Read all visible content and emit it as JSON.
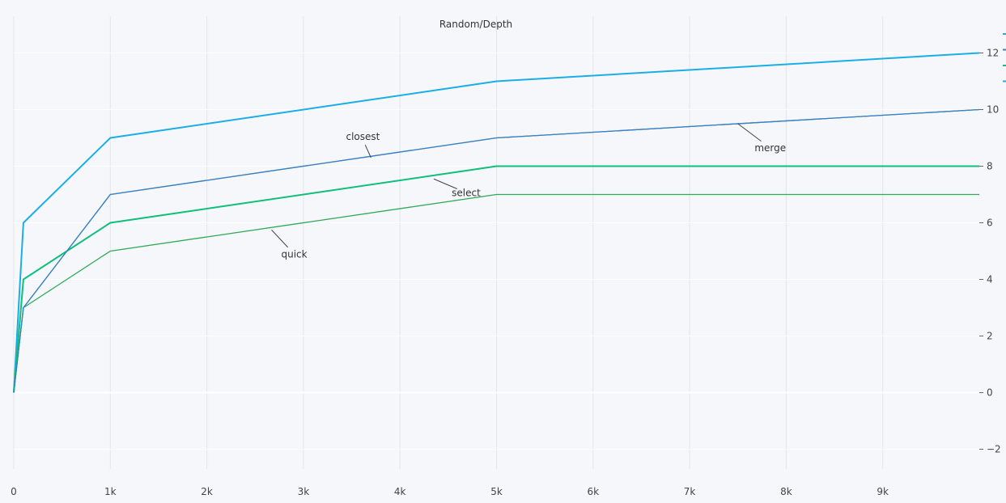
{
  "chart_data": {
    "type": "line",
    "title": "Random/Depth",
    "xlabel": "",
    "ylabel": "",
    "xlim": [
      0,
      10000
    ],
    "ylim": [
      -2.7,
      13.3
    ],
    "grid": true,
    "y_axis_side": "right",
    "x_ticks": [
      0,
      1000,
      2000,
      3000,
      4000,
      5000,
      6000,
      7000,
      8000,
      9000
    ],
    "x_tick_labels": [
      "0",
      "1k",
      "2k",
      "3k",
      "4k",
      "5k",
      "6k",
      "7k",
      "8k",
      "9k"
    ],
    "y_ticks": [
      -2,
      0,
      2,
      4,
      6,
      8,
      10,
      12
    ],
    "y_tick_labels": [
      "−2",
      "0",
      "2",
      "4",
      "6",
      "8",
      "10",
      "12"
    ],
    "x": [
      0,
      100,
      1000,
      5000,
      10000
    ],
    "series": [
      {
        "values": [
          0,
          6,
          9,
          11,
          12
        ],
        "color": "#1aaee8",
        "width": 2
      },
      {
        "name": "closest",
        "values": [
          0,
          3,
          7,
          9,
          10
        ],
        "color": "#3a82c4",
        "width": 1.3
      },
      {
        "name": "select",
        "values": [
          0,
          4,
          6,
          8,
          8
        ],
        "color": "#0fbf7a",
        "width": 2
      },
      {
        "name": "quick",
        "values": [
          0,
          3,
          5,
          7,
          7
        ],
        "color": "#2daa55",
        "width": 1.3
      },
      {
        "name": "merge",
        "values": [
          0,
          3,
          7,
          9,
          10
        ],
        "color": "#3a82c4",
        "width": 1.3
      }
    ],
    "annotations": [
      {
        "text": "closest",
        "x": 3700,
        "y": 8.3
      },
      {
        "text": "merge",
        "x": 7500,
        "y": 9.5
      },
      {
        "text": "select",
        "x": 4350,
        "y": 7.55
      },
      {
        "text": "quick",
        "x": 2670,
        "y": 5.75
      }
    ],
    "legend_placement": "right edge",
    "legend_colors": [
      "#1aaee8",
      "#3a82c4",
      "#0fbf7a",
      "#1aaee8"
    ]
  }
}
